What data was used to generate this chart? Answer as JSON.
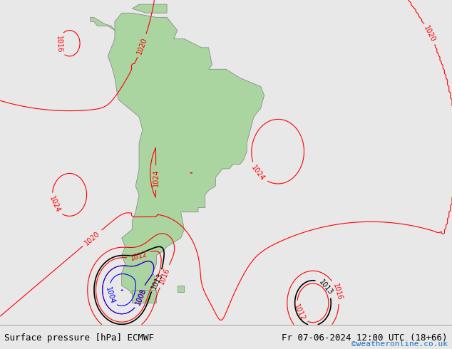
{
  "title_left": "Surface pressure [hPa] ECMWF",
  "title_right": "Fr 07-06-2024 12:00 UTC (18+66)",
  "watermark": "©weatheronline.co.uk",
  "bg_color": "#e8e8e8",
  "land_color": "#aad4a0",
  "ocean_color": "#d8d8d8",
  "fig_width": 6.34,
  "fig_height": 4.9,
  "dpi": 100
}
